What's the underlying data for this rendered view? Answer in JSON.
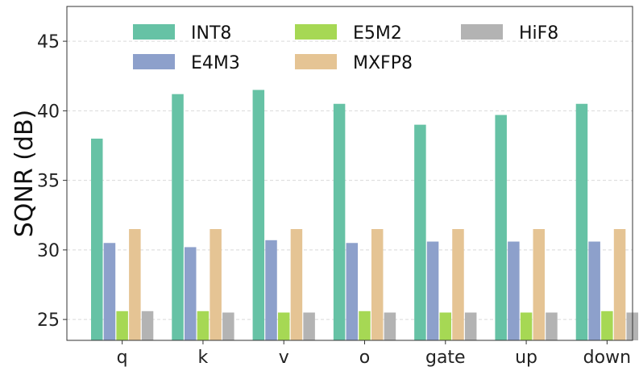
{
  "chart_data": {
    "type": "bar",
    "title": "",
    "xlabel": "",
    "ylabel": "SQNR (dB)",
    "ylim": [
      23.5,
      47.5
    ],
    "yticks": [
      25,
      30,
      35,
      40,
      45
    ],
    "grid": true,
    "legend_position": "top",
    "categories": [
      "q",
      "k",
      "v",
      "o",
      "gate",
      "up",
      "down"
    ],
    "series": [
      {
        "name": "INT8",
        "color": "#66c2a5",
        "values": [
          38.0,
          41.2,
          41.5,
          40.5,
          39.0,
          39.7,
          40.5
        ]
      },
      {
        "name": "E4M3",
        "color": "#8da0cb",
        "values": [
          30.5,
          30.2,
          30.7,
          30.5,
          30.6,
          30.6,
          30.6
        ]
      },
      {
        "name": "E5M2",
        "color": "#a6d854",
        "values": [
          25.6,
          25.6,
          25.5,
          25.6,
          25.5,
          25.5,
          25.6
        ]
      },
      {
        "name": "MXFP8",
        "color": "#e5c494",
        "values": [
          31.5,
          31.5,
          31.5,
          31.5,
          31.5,
          31.5,
          31.5
        ]
      },
      {
        "name": "HiF8",
        "color": "#b3b3b3",
        "values": [
          25.6,
          25.5,
          25.5,
          25.5,
          25.5,
          25.5,
          25.5
        ]
      }
    ]
  }
}
